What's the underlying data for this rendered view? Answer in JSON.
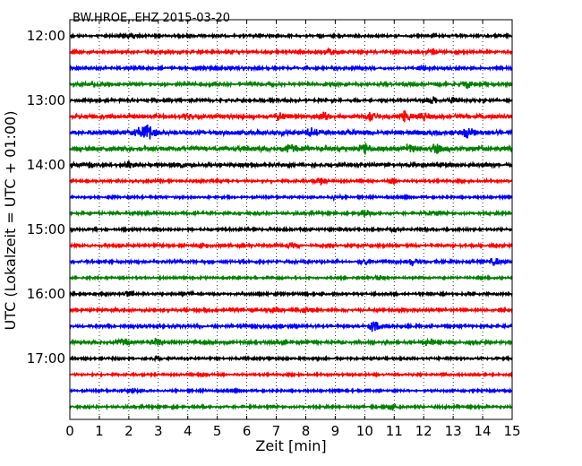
{
  "chart_data": {
    "type": "line",
    "title": "BW.HROE..EHZ 2015-03-20",
    "xlabel": "Zeit  [min]",
    "ylabel": "UTC (Lokalzeit = UTC + 01:00)",
    "x_ticks": [
      "0",
      "1",
      "2",
      "3",
      "4",
      "5",
      "6",
      "7",
      "8",
      "9",
      "10",
      "11",
      "12",
      "13",
      "14",
      "15"
    ],
    "xlim": [
      0,
      15
    ],
    "y_ticks": [
      "12:00",
      "13:00",
      "14:00",
      "15:00",
      "16:00",
      "17:00"
    ],
    "grid": "vertical dotted at each minute",
    "line_colors": [
      "#000000",
      "#ff0000",
      "#0000ff",
      "#008000"
    ],
    "traces_per_hour": 4,
    "series": [
      {
        "start": "12:00",
        "color_index": 0,
        "amplitude": 0.5,
        "events": [
          [
            2.2,
            0.9
          ]
        ]
      },
      {
        "start": "12:15",
        "color_index": 1,
        "amplitude": 0.55,
        "events": [
          [
            8.8,
            1.3
          ],
          [
            12.3,
            1.1
          ]
        ]
      },
      {
        "start": "12:30",
        "color_index": 2,
        "amplitude": 0.55,
        "events": [
          [
            12.0,
            0.9
          ]
        ]
      },
      {
        "start": "12:45",
        "color_index": 3,
        "amplitude": 0.65,
        "events": [
          [
            1.0,
            1.0
          ],
          [
            13.5,
            1.4
          ]
        ]
      },
      {
        "start": "13:00",
        "color_index": 0,
        "amplitude": 0.55,
        "events": [
          [
            12.3,
            1.3
          ],
          [
            13.0,
            1.0
          ]
        ]
      },
      {
        "start": "13:15",
        "color_index": 1,
        "amplitude": 0.9,
        "events": [
          [
            4.0,
            1.0
          ],
          [
            7.1,
            1.2
          ],
          [
            8.6,
            1.3
          ],
          [
            10.2,
            1.6
          ],
          [
            11.4,
            2.0
          ],
          [
            12.0,
            1.3
          ]
        ]
      },
      {
        "start": "13:30",
        "color_index": 2,
        "amplitude": 1.0,
        "events": [
          [
            2.4,
            1.6
          ],
          [
            2.7,
            2.6
          ],
          [
            8.2,
            1.5
          ],
          [
            13.5,
            1.6
          ]
        ]
      },
      {
        "start": "13:45",
        "color_index": 3,
        "amplitude": 1.0,
        "events": [
          [
            7.5,
            1.6
          ],
          [
            10.0,
            1.9
          ],
          [
            11.5,
            1.5
          ],
          [
            12.4,
            1.4
          ]
        ]
      },
      {
        "start": "14:00",
        "color_index": 0,
        "amplitude": 0.7,
        "events": [
          [
            0.6,
            1.3
          ],
          [
            2.0,
            1.4
          ],
          [
            3.7,
            1.0
          ]
        ]
      },
      {
        "start": "14:15",
        "color_index": 1,
        "amplitude": 0.5,
        "events": [
          [
            8.5,
            1.4
          ],
          [
            11.0,
            1.0
          ]
        ]
      },
      {
        "start": "14:30",
        "color_index": 2,
        "amplitude": 0.45,
        "events": [
          [
            9.0,
            0.8
          ]
        ]
      },
      {
        "start": "14:45",
        "color_index": 3,
        "amplitude": 0.55,
        "events": [
          [
            10.0,
            1.4
          ],
          [
            12.3,
            1.2
          ]
        ]
      },
      {
        "start": "15:00",
        "color_index": 0,
        "amplitude": 0.5,
        "events": [
          [
            11.0,
            1.0
          ]
        ]
      },
      {
        "start": "15:15",
        "color_index": 1,
        "amplitude": 0.55,
        "events": [
          [
            4.5,
            1.1
          ],
          [
            7.5,
            0.9
          ]
        ]
      },
      {
        "start": "15:30",
        "color_index": 2,
        "amplitude": 0.55,
        "events": [
          [
            10.0,
            1.4
          ],
          [
            11.6,
            1.5
          ],
          [
            14.4,
            1.4
          ]
        ]
      },
      {
        "start": "15:45",
        "color_index": 3,
        "amplitude": 0.45,
        "events": [
          [
            10.5,
            0.8
          ]
        ]
      },
      {
        "start": "16:00",
        "color_index": 0,
        "amplitude": 0.5,
        "events": [
          [
            2.0,
            1.2
          ],
          [
            4.0,
            1.0
          ]
        ]
      },
      {
        "start": "16:15",
        "color_index": 1,
        "amplitude": 0.55,
        "events": [
          [
            7.0,
            1.3
          ],
          [
            8.0,
            1.0
          ]
        ]
      },
      {
        "start": "16:30",
        "color_index": 2,
        "amplitude": 0.55,
        "events": [
          [
            7.0,
            1.0
          ],
          [
            10.3,
            2.2
          ]
        ]
      },
      {
        "start": "16:45",
        "color_index": 3,
        "amplitude": 0.6,
        "events": [
          [
            1.8,
            1.5
          ],
          [
            2.9,
            1.5
          ],
          [
            12.2,
            1.7
          ]
        ]
      },
      {
        "start": "17:00",
        "color_index": 0,
        "amplitude": 0.45,
        "events": [
          [
            3.0,
            0.8
          ]
        ]
      },
      {
        "start": "17:15",
        "color_index": 1,
        "amplitude": 0.45,
        "events": [
          [
            4.6,
            0.9
          ]
        ]
      },
      {
        "start": "17:30",
        "color_index": 2,
        "amplitude": 0.45,
        "events": [
          [
            2.1,
            0.8
          ]
        ]
      },
      {
        "start": "17:45",
        "color_index": 3,
        "amplitude": 0.5,
        "events": [
          [
            11.0,
            1.3
          ]
        ]
      }
    ]
  }
}
